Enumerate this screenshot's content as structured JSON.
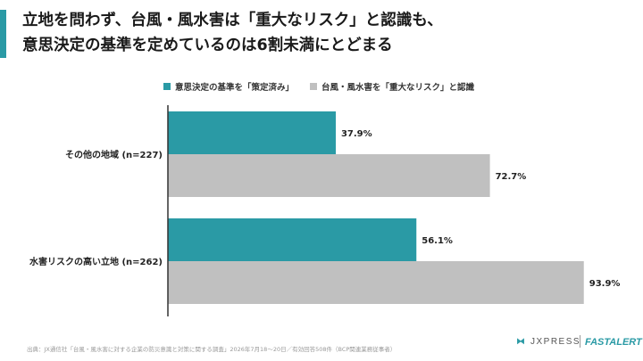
{
  "title_lines": [
    "立地を問わず、台風・風水害は「重大なリスク」と認識も、",
    "意思決定の基準を定めているのは6割未満にとどまる"
  ],
  "colors": {
    "accent": "#2a9aa5",
    "series1": "#2a9aa5",
    "series2": "#c0c0c0"
  },
  "chart_data": {
    "type": "bar",
    "orientation": "horizontal",
    "categories": [
      "その他の地域 (n=227)",
      "水害リスクの高い立地 (n=262)"
    ],
    "series": [
      {
        "name": "意思決定の基準を「策定済み」",
        "values": [
          37.9,
          56.1
        ],
        "labels": [
          "37.9%",
          "56.1%"
        ]
      },
      {
        "name": "台風・風水害を「重大なリスク」と認識",
        "values": [
          72.7,
          93.9
        ],
        "labels": [
          "72.7%",
          "93.9%"
        ]
      }
    ],
    "xlim": [
      0,
      100
    ],
    "legend_position": "top",
    "grid": false
  },
  "footer": {
    "source": "出典：JX通信社「台風・風水害に対する企業の防災意識と対策に関する調査」2026年7月18〜20日／有効回答508件（BCP関連業務従事者）",
    "brand_jx": "JXPRESS",
    "brand_fa": "FASTALERT"
  }
}
